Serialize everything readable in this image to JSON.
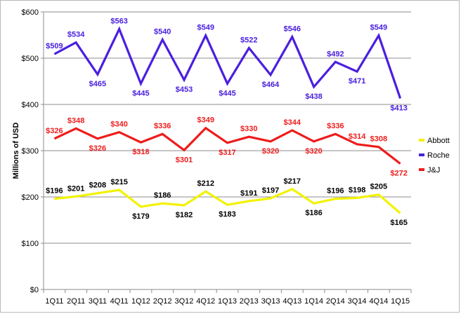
{
  "chart_data": {
    "type": "line",
    "title": "",
    "xlabel": "",
    "ylabel": "Millions of USD",
    "ylim": [
      0,
      600
    ],
    "yticks": [
      0,
      100,
      200,
      300,
      400,
      500,
      600
    ],
    "ytick_labels": [
      "$0",
      "$100",
      "$200",
      "$300",
      "$400",
      "$500",
      "$600"
    ],
    "grid": "horizontal",
    "legend_position": "right",
    "categories": [
      "1Q11",
      "2Q11",
      "3Q11",
      "4Q11",
      "1Q12",
      "2Q12",
      "3Q12",
      "4Q12",
      "1Q13",
      "2Q13",
      "3Q13",
      "4Q13",
      "1Q14",
      "2Q14",
      "3Q14",
      "4Q14",
      "1Q15"
    ],
    "series": [
      {
        "name": "Abbott",
        "color": "#f2f200",
        "values": [
          196,
          201,
          208,
          215,
          179,
          186,
          182,
          212,
          183,
          191,
          197,
          217,
          186,
          196,
          198,
          205,
          165
        ],
        "labels": [
          "$196",
          "$201",
          "$208",
          "$215",
          "$179",
          "$186",
          "$182",
          "$212",
          "$183",
          "$191",
          "$197",
          "$217",
          "$186",
          "$196",
          "$198",
          "$205",
          "$165"
        ],
        "label_color": "#000000"
      },
      {
        "name": "Roche",
        "color": "#4a1fe0",
        "values": [
          509,
          534,
          465,
          563,
          445,
          540,
          453,
          549,
          445,
          522,
          464,
          546,
          438,
          492,
          471,
          549,
          413
        ],
        "labels": [
          "$509",
          "$534",
          "$465",
          "$563",
          "$445",
          "$540",
          "$453",
          "$549",
          "$445",
          "$522",
          "$464",
          "$546",
          "$438",
          "$492",
          "$471",
          "$549",
          "$413"
        ],
        "label_color": "#4a1fe0"
      },
      {
        "name": "J&J",
        "color": "#ee1c1c",
        "values": [
          326,
          348,
          326,
          340,
          318,
          336,
          301,
          349,
          317,
          330,
          320,
          344,
          320,
          336,
          314,
          308,
          272
        ],
        "labels": [
          "$326",
          "$348",
          "$326",
          "$340",
          "$318",
          "$336",
          "$301",
          "$349",
          "$317",
          "$330",
          "$320",
          "$344",
          "$320",
          "$336",
          "$314",
          "$308",
          "$272"
        ],
        "label_color": "#ee1c1c"
      }
    ]
  }
}
